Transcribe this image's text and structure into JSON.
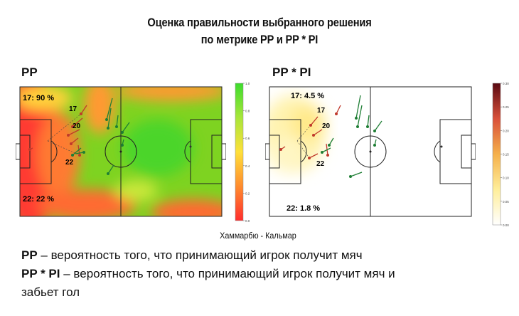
{
  "title_line1": "Оценка правильности выбранного решения",
  "title_line2": "по метрике PP и PP * PI",
  "match": "Хаммарбю - Кальмар",
  "legend": {
    "pp_term": "PP",
    "pp_text": " – вероятность того, что принимающий игрок получит мяч",
    "pppi_term": "PP * PI",
    "pppi_text": " – вероятность того, что принимающий игрок получит мяч и",
    "pppi_cont": "забьет гол"
  },
  "colors": {
    "player_red": "#c0392b",
    "player_green": "#1e7e34",
    "pitch_line": "#222222"
  },
  "chart_data": [
    {
      "type": "heatmap",
      "title": "PP",
      "colormap": "red-yellow-green",
      "colorbar_range": [
        0,
        1
      ],
      "colorbar_ticks": [
        "0.0",
        "0.2",
        "0.4",
        "0.6",
        "0.8",
        "1.0"
      ],
      "annotations": [
        {
          "player": "17",
          "value": "90 %",
          "label": "17:  90 %"
        },
        {
          "player": "22",
          "value": "22 %",
          "label": "22:  22 %"
        }
      ],
      "player_labels": [
        "17",
        "20",
        "22"
      ]
    },
    {
      "type": "heatmap",
      "title": "PP * PI",
      "colormap": "white-yellow-red",
      "colorbar_range": [
        0,
        0.3
      ],
      "colorbar_ticks": [
        "0.00",
        "0.05",
        "0.10",
        "0.15",
        "0.20",
        "0.25",
        "0.30"
      ],
      "annotations": [
        {
          "player": "17",
          "value": "4.5 %",
          "label": "17:  4.5 %"
        },
        {
          "player": "22",
          "value": "1.8 %",
          "label": "22:  1.8 %"
        }
      ],
      "player_labels": [
        "17",
        "20",
        "22"
      ]
    }
  ]
}
